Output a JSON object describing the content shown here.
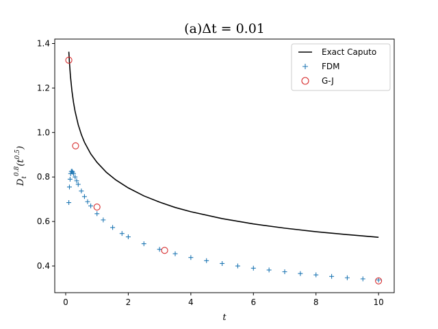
{
  "chart_data": {
    "type": "line",
    "title": "(a)Δt = 0.01",
    "xlabel": "t",
    "ylabel": "D_t^{0.8}(t^{0.5})",
    "xlim": [
      -0.35,
      10.5
    ],
    "ylim": [
      0.28,
      1.42
    ],
    "xticks": [
      0,
      2,
      4,
      6,
      8,
      10
    ],
    "yticks": [
      0.4,
      0.6,
      0.8,
      1.0,
      1.2,
      1.4
    ],
    "xtick_labels": [
      "0",
      "2",
      "4",
      "6",
      "8",
      "10"
    ],
    "ytick_labels": [
      "0.4",
      "0.6",
      "0.8",
      "1.0",
      "1.2",
      "1.4"
    ],
    "grid": false,
    "legend": "top-right",
    "series": [
      {
        "name": "Exact Caputo",
        "kind": "line",
        "color": "#000000",
        "x": [
          0.1,
          0.12,
          0.15,
          0.2,
          0.25,
          0.3,
          0.4,
          0.5,
          0.6,
          0.8,
          1.0,
          1.3,
          1.6,
          2.0,
          2.5,
          3.0,
          3.5,
          4.0,
          5.0,
          6.0,
          7.0,
          8.0,
          9.0,
          10.0
        ],
        "y": [
          1.363,
          1.315,
          1.256,
          1.186,
          1.135,
          1.095,
          1.035,
          0.991,
          0.956,
          0.904,
          0.866,
          0.821,
          0.787,
          0.751,
          0.715,
          0.687,
          0.663,
          0.644,
          0.613,
          0.589,
          0.57,
          0.554,
          0.541,
          0.529
        ]
      },
      {
        "name": "FDM",
        "kind": "marker-plus",
        "color": "#1f77b4",
        "x": [
          0.1,
          0.12,
          0.14,
          0.16,
          0.18,
          0.2,
          0.22,
          0.25,
          0.3,
          0.35,
          0.4,
          0.5,
          0.6,
          0.7,
          0.8,
          1.0,
          1.2,
          1.5,
          1.8,
          2.0,
          2.5,
          3.0,
          3.5,
          4.0,
          4.5,
          5.0,
          5.5,
          6.0,
          6.5,
          7.0,
          7.5,
          8.0,
          8.5,
          9.0,
          9.5,
          10.0
        ],
        "y": [
          0.685,
          0.755,
          0.79,
          0.815,
          0.825,
          0.826,
          0.822,
          0.815,
          0.8,
          0.783,
          0.767,
          0.737,
          0.712,
          0.689,
          0.67,
          0.635,
          0.607,
          0.573,
          0.546,
          0.531,
          0.5,
          0.475,
          0.455,
          0.438,
          0.424,
          0.411,
          0.4,
          0.39,
          0.382,
          0.374,
          0.366,
          0.36,
          0.353,
          0.347,
          0.342,
          0.337
        ]
      },
      {
        "name": "G-J",
        "kind": "marker-circle",
        "color": "#d62728",
        "x": [
          0.1,
          0.316,
          1.0,
          3.162,
          10.0
        ],
        "y": [
          1.325,
          0.94,
          0.665,
          0.47,
          0.333
        ]
      }
    ]
  }
}
